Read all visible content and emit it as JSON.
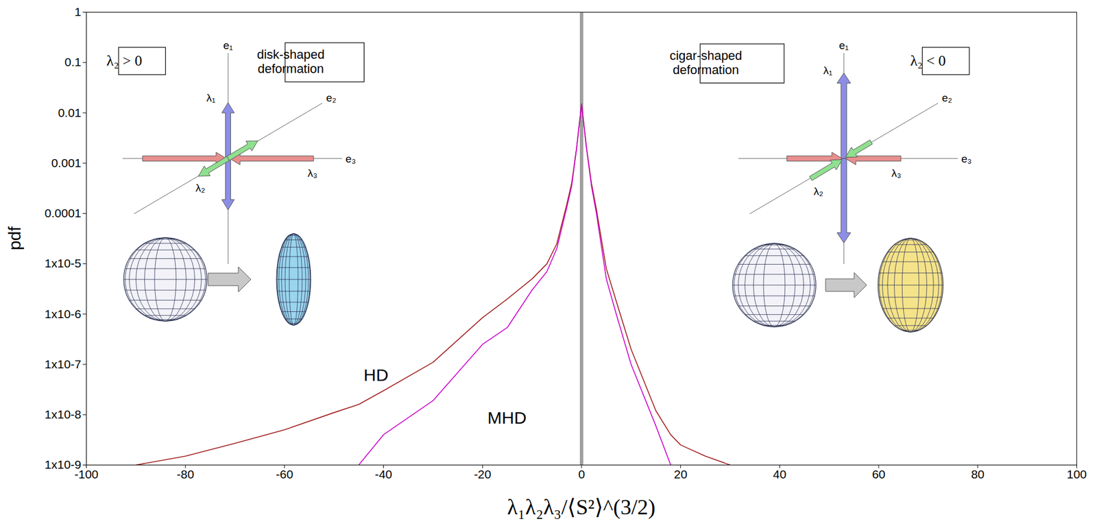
{
  "chart_data": {
    "type": "line",
    "x_label": "λ₁λ₂λ₃/⟨S²⟩^(3/2)",
    "y_label": "pdf",
    "x": [
      -90,
      -80,
      -70,
      -60,
      -50,
      -45,
      -40,
      -30,
      -20,
      -15,
      -10,
      -7,
      -5,
      -3,
      -2,
      -1,
      0,
      1,
      2,
      3,
      5,
      7,
      10,
      15,
      18,
      20,
      25,
      30
    ],
    "series": [
      {
        "name": "HD",
        "color": "#a01c1c",
        "label_at": [
          -44,
          6e-08
        ],
        "values": [
          1e-09,
          1.5e-09,
          2.7e-09,
          5e-09,
          1.1e-08,
          1.6e-08,
          3e-08,
          1.1e-07,
          8.5e-07,
          2e-06,
          5e-06,
          1e-05,
          2.5e-05,
          0.00015,
          0.0004,
          0.002,
          0.015,
          0.002,
          0.0004,
          0.00012,
          8e-06,
          1.8e-06,
          2e-07,
          1.2e-08,
          4e-09,
          2.5e-09,
          1.5e-09,
          1e-09
        ]
      },
      {
        "name": "MHD",
        "color": "#cc00cc",
        "label_at": [
          -19,
          8.5e-09
        ],
        "values": [
          null,
          null,
          null,
          null,
          null,
          1e-09,
          4e-09,
          1.9e-08,
          2.5e-07,
          5.4e-07,
          3e-06,
          7e-06,
          2e-05,
          0.00013,
          0.00035,
          0.002,
          0.015,
          0.002,
          0.00035,
          0.0001,
          5e-06,
          1e-06,
          1e-07,
          6e-09,
          1e-09,
          null,
          null,
          null
        ]
      }
    ],
    "xlim": [
      -100,
      100
    ],
    "xticks": [
      -100,
      -80,
      -60,
      -40,
      -20,
      0,
      20,
      40,
      60,
      80,
      100
    ],
    "ylim": [
      1e-09,
      1
    ],
    "yticks": [
      1,
      0.1,
      0.01,
      0.001,
      0.0001,
      {
        "value": 1e-05,
        "label": "1x10-5"
      },
      {
        "value": 1e-06,
        "label": "1x10-6"
      },
      {
        "value": 1e-07,
        "label": "1x10-7"
      },
      {
        "value": 1e-08,
        "label": "1x10-8"
      },
      {
        "value": 1e-09,
        "label": "1x10-9"
      }
    ],
    "log": "y",
    "reference_x": 0,
    "insets": [
      {
        "condition": "λ₂ > 0",
        "caption": "disk-shaped deformation",
        "axes": [
          "e₁",
          "e₂",
          "e₃"
        ],
        "arrows": [
          "λ₁",
          "λ₂",
          "λ₃"
        ]
      },
      {
        "condition": "λ₂ < 0",
        "caption": "cigar-shaped deformation",
        "axes": [
          "e₁",
          "e₂",
          "e₃"
        ],
        "arrows": [
          "λ₁",
          "λ₂",
          "λ₃"
        ]
      }
    ]
  }
}
